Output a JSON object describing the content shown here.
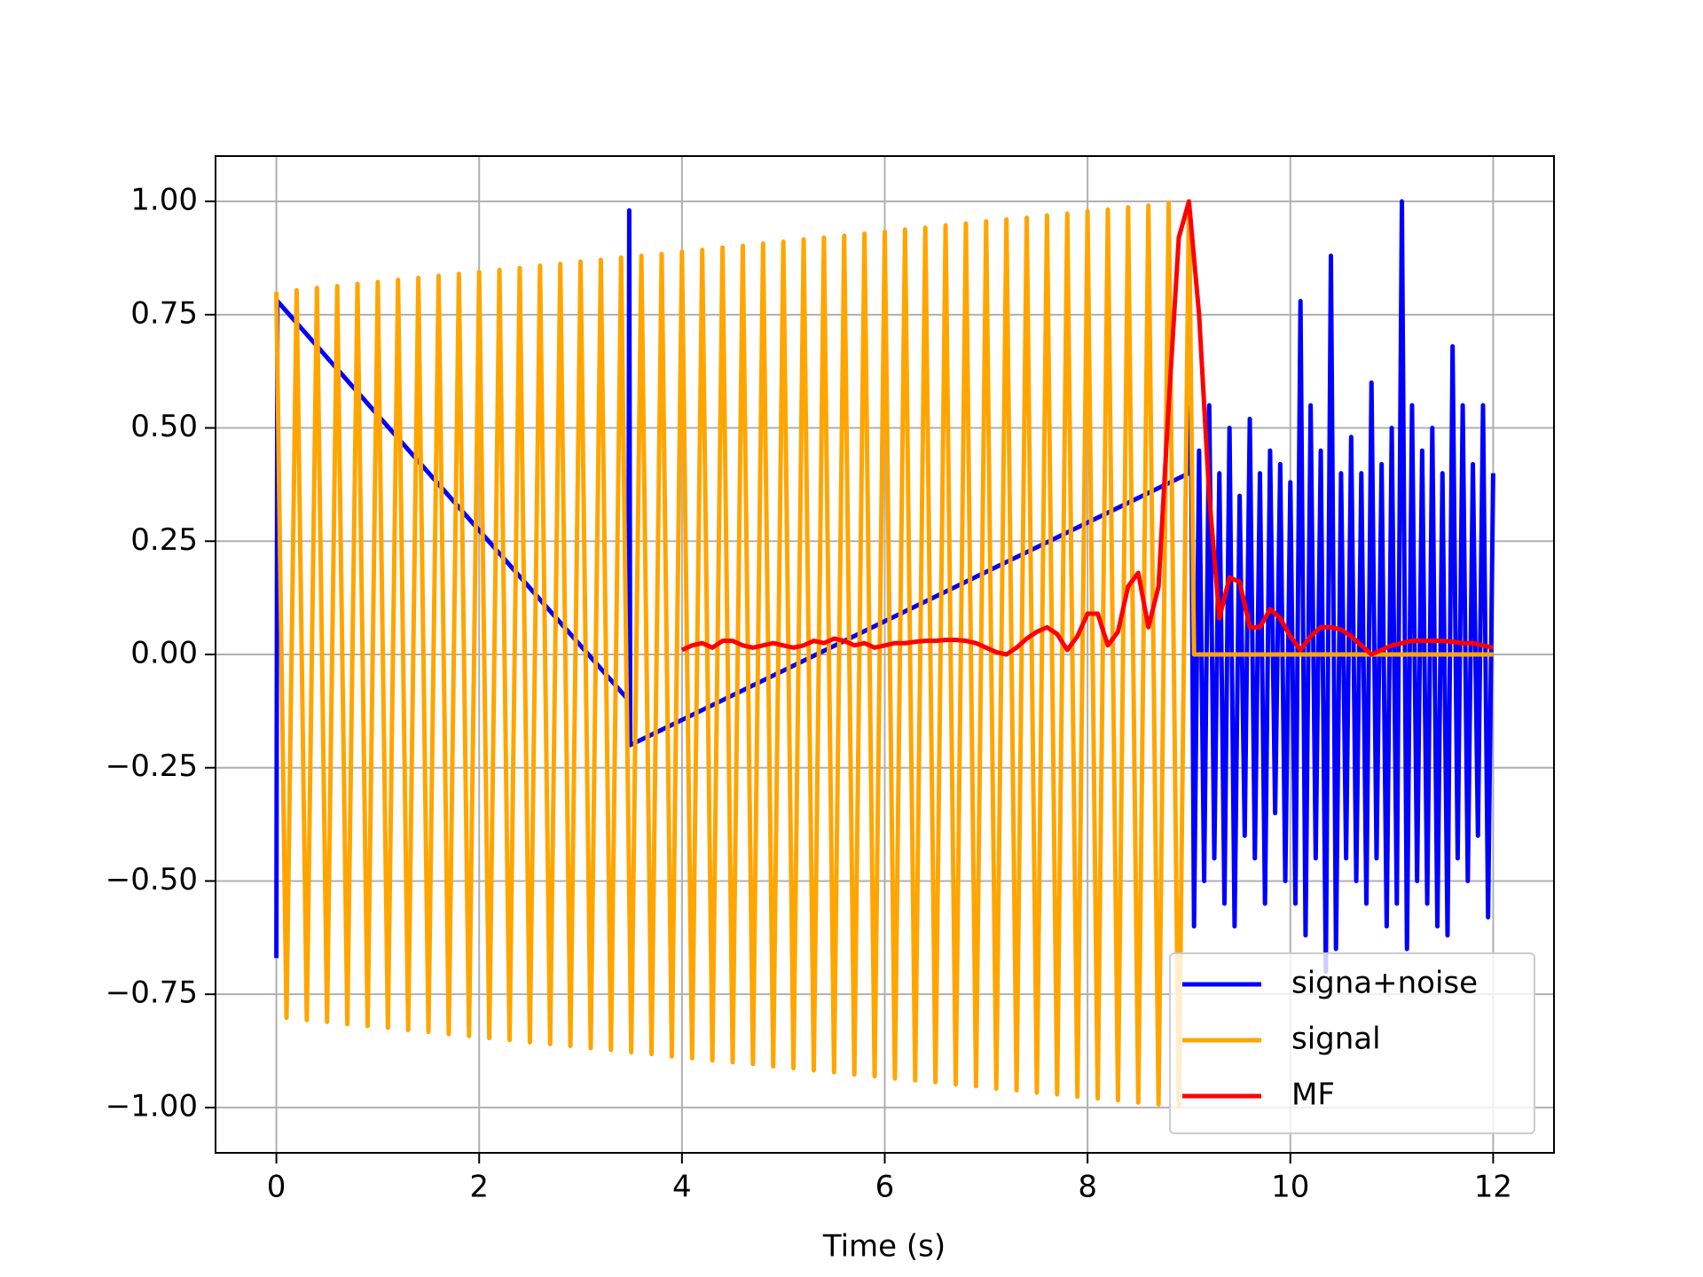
{
  "chart_data": {
    "type": "line",
    "xlabel": "Time (s)",
    "xlim": [
      -0.6,
      12.6
    ],
    "ylim": [
      -1.1,
      1.1
    ],
    "xticks": [
      0,
      2,
      4,
      6,
      8,
      10,
      12
    ],
    "yticks": [
      {
        "value": -1,
        "label": "−1.00"
      },
      {
        "value": -0.75,
        "label": "−0.75"
      },
      {
        "value": -0.5,
        "label": "−0.50"
      },
      {
        "value": -0.25,
        "label": "−0.25"
      },
      {
        "value": 0,
        "label": "0.00"
      },
      {
        "value": 0.25,
        "label": "0.25"
      },
      {
        "value": 0.5,
        "label": "0.50"
      },
      {
        "value": 0.75,
        "label": "0.75"
      },
      {
        "value": 1,
        "label": "1.00"
      }
    ],
    "grid": true,
    "legend": "lower-right",
    "series": [
      {
        "name": "signa+noise",
        "color": "#0000ff",
        "x": [
          0,
          0.01,
          3.47,
          3.48,
          3.49,
          9.0,
          9.02,
          9.05,
          9.1,
          9.15,
          9.2,
          9.25,
          9.3,
          9.35,
          9.4,
          9.45,
          9.5,
          9.55,
          9.6,
          9.65,
          9.7,
          9.75,
          9.8,
          9.85,
          9.9,
          9.95,
          10.0,
          10.05,
          10.1,
          10.15,
          10.2,
          10.25,
          10.3,
          10.35,
          10.4,
          10.45,
          10.5,
          10.55,
          10.6,
          10.65,
          10.7,
          10.75,
          10.8,
          10.85,
          10.9,
          10.95,
          11.0,
          11.05,
          11.1,
          11.15,
          11.2,
          11.25,
          11.3,
          11.35,
          11.4,
          11.45,
          11.5,
          11.55,
          11.6,
          11.65,
          11.7,
          11.75,
          11.8,
          11.85,
          11.9,
          11.95,
          12.0
        ],
        "values": [
          -0.67,
          0.78,
          -0.1,
          0.98,
          -0.2,
          0.4,
          0.55,
          -0.6,
          0.45,
          -0.5,
          0.55,
          -0.45,
          0.4,
          -0.55,
          0.5,
          -0.6,
          0.35,
          -0.4,
          0.52,
          -0.45,
          0.4,
          -0.55,
          0.45,
          -0.35,
          0.42,
          -0.5,
          0.38,
          -0.55,
          0.78,
          -0.62,
          0.55,
          -0.45,
          0.45,
          -0.7,
          0.88,
          -0.65,
          0.4,
          -0.45,
          0.48,
          -0.5,
          0.4,
          -0.55,
          0.6,
          -0.45,
          0.42,
          -0.6,
          0.5,
          -0.55,
          1.0,
          -0.65,
          0.55,
          -0.5,
          0.45,
          -0.55,
          0.5,
          -0.6,
          0.4,
          -0.62,
          0.68,
          -0.45,
          0.55,
          -0.5,
          0.42,
          -0.4,
          0.55,
          -0.58,
          0.4
        ]
      },
      {
        "name": "signal",
        "color": "#ffa500",
        "x": [
          0,
          0.1,
          0.2,
          0.3,
          0.4,
          0.5,
          0.6,
          0.7,
          0.8,
          0.9,
          1.0,
          1.1,
          1.2,
          1.3,
          1.4,
          1.5,
          1.6,
          1.7,
          1.8,
          1.9,
          2.0,
          2.1,
          2.2,
          2.3,
          2.4,
          2.5,
          2.6,
          2.7,
          2.8,
          2.9,
          3.0,
          3.1,
          3.2,
          3.3,
          3.4,
          3.5,
          3.6,
          3.7,
          3.8,
          3.9,
          4.0,
          4.1,
          4.2,
          4.3,
          4.4,
          4.5,
          4.6,
          4.7,
          4.8,
          4.9,
          5.0,
          5.1,
          5.2,
          5.3,
          5.4,
          5.5,
          5.6,
          5.7,
          5.8,
          5.9,
          6.0,
          6.1,
          6.2,
          6.3,
          6.4,
          6.5,
          6.6,
          6.7,
          6.8,
          6.9,
          7.0,
          7.1,
          7.2,
          7.3,
          7.4,
          7.5,
          7.6,
          7.7,
          7.8,
          7.9,
          8.0,
          8.1,
          8.2,
          8.3,
          8.4,
          8.5,
          8.6,
          8.7,
          8.8,
          8.9,
          9.0,
          9.05,
          12.0
        ],
        "values": [
          0.8,
          -0.802,
          0.804,
          -0.807,
          0.809,
          -0.811,
          0.813,
          -0.816,
          0.818,
          -0.82,
          0.822,
          -0.824,
          0.827,
          -0.829,
          0.831,
          -0.833,
          0.836,
          -0.838,
          0.84,
          -0.842,
          0.844,
          -0.847,
          0.849,
          -0.851,
          0.853,
          -0.856,
          0.858,
          -0.86,
          0.862,
          -0.864,
          0.867,
          -0.869,
          0.871,
          -0.873,
          0.876,
          -0.878,
          0.88,
          -0.882,
          0.884,
          -0.887,
          0.889,
          -0.891,
          0.893,
          -0.896,
          0.898,
          -0.9,
          0.902,
          -0.904,
          0.907,
          -0.909,
          0.911,
          -0.913,
          0.916,
          -0.918,
          0.92,
          -0.922,
          0.924,
          -0.927,
          0.929,
          -0.931,
          0.933,
          -0.936,
          0.938,
          -0.94,
          0.942,
          -0.944,
          0.947,
          -0.949,
          0.951,
          -0.953,
          0.956,
          -0.958,
          0.96,
          -0.962,
          0.964,
          -0.967,
          0.969,
          -0.971,
          0.973,
          -0.976,
          0.978,
          -0.98,
          0.982,
          -0.984,
          0.987,
          -0.989,
          0.991,
          -0.993,
          0.996,
          -0.998,
          1.0,
          0,
          0
        ]
      },
      {
        "name": "MF",
        "color": "#ff0000",
        "x": [
          4.0,
          4.1,
          4.2,
          4.3,
          4.4,
          4.5,
          4.6,
          4.7,
          4.8,
          4.9,
          5.0,
          5.1,
          5.2,
          5.3,
          5.4,
          5.5,
          5.6,
          5.7,
          5.8,
          5.9,
          6.0,
          6.1,
          6.2,
          6.3,
          6.4,
          6.5,
          6.6,
          6.7,
          6.8,
          6.9,
          7.0,
          7.1,
          7.2,
          7.3,
          7.4,
          7.5,
          7.6,
          7.7,
          7.8,
          7.9,
          8.0,
          8.1,
          8.2,
          8.3,
          8.4,
          8.5,
          8.6,
          8.7,
          8.8,
          8.9,
          9.0,
          9.1,
          9.2,
          9.3,
          9.4,
          9.5,
          9.6,
          9.7,
          9.8,
          9.9,
          10.0,
          10.1,
          10.2,
          10.3,
          10.4,
          10.5,
          10.6,
          10.7,
          10.8,
          10.9,
          11.0,
          11.1,
          11.2,
          11.3,
          11.4,
          11.5,
          11.6,
          11.7,
          11.8,
          11.9,
          12.0
        ],
        "values": [
          0.01,
          0.02,
          0.025,
          0.015,
          0.03,
          0.03,
          0.02,
          0.015,
          0.02,
          0.025,
          0.02,
          0.015,
          0.02,
          0.03,
          0.025,
          0.035,
          0.03,
          0.02,
          0.025,
          0.015,
          0.02,
          0.025,
          0.025,
          0.028,
          0.03,
          0.03,
          0.032,
          0.032,
          0.03,
          0.025,
          0.015,
          0.005,
          0.0,
          0.015,
          0.035,
          0.05,
          0.06,
          0.045,
          0.01,
          0.04,
          0.09,
          0.09,
          0.02,
          0.05,
          0.15,
          0.18,
          0.06,
          0.15,
          0.55,
          0.92,
          1.0,
          0.75,
          0.35,
          0.08,
          0.17,
          0.16,
          0.06,
          0.06,
          0.1,
          0.08,
          0.04,
          0.01,
          0.04,
          0.06,
          0.06,
          0.055,
          0.04,
          0.02,
          0.0,
          0.01,
          0.02,
          0.025,
          0.03,
          0.03,
          0.03,
          0.03,
          0.028,
          0.025,
          0.025,
          0.02,
          0.015
        ]
      }
    ]
  }
}
